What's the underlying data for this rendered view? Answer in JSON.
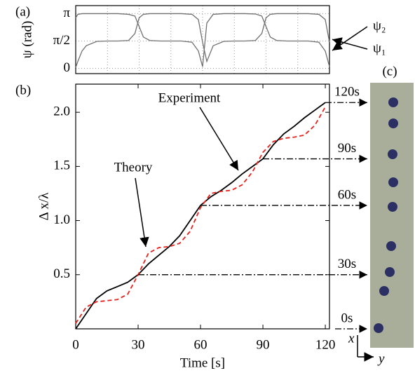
{
  "chart_data": [
    {
      "type": "line",
      "panel_label": "(a)",
      "y_label": "ψ (rad)",
      "x": [
        0,
        1,
        3,
        5,
        10,
        15,
        20,
        25,
        28,
        30,
        32,
        35,
        40,
        45,
        50,
        55,
        58,
        60,
        62,
        65,
        70,
        75,
        80,
        85,
        88,
        90,
        92,
        95,
        100,
        105,
        110,
        115,
        118,
        120
      ],
      "series": [
        {
          "name": "ψ₂",
          "color": "#707070",
          "values": [
            2.9,
            3.1,
            3.14,
            3.14,
            3.14,
            3.14,
            3.14,
            3.1,
            3.0,
            2.4,
            1.8,
            1.6,
            1.57,
            1.57,
            1.57,
            1.5,
            1.0,
            0.1,
            2.6,
            3.1,
            3.14,
            3.14,
            3.14,
            3.12,
            3.0,
            2.4,
            1.8,
            1.6,
            1.57,
            1.57,
            1.57,
            1.5,
            1.0,
            0.1
          ]
        },
        {
          "name": "ψ₁",
          "color": "#707070",
          "values": [
            0.05,
            0.4,
            1.0,
            1.3,
            1.55,
            1.57,
            1.57,
            1.6,
            2.0,
            2.9,
            3.1,
            3.14,
            3.14,
            3.14,
            3.14,
            3.1,
            2.8,
            1.5,
            0.4,
            1.3,
            1.55,
            1.57,
            1.57,
            1.6,
            2.0,
            2.9,
            3.1,
            3.14,
            3.14,
            3.14,
            3.14,
            3.1,
            2.8,
            1.5
          ]
        }
      ],
      "xlim": [
        0,
        120
      ],
      "ylim": [
        -0.3,
        3.6
      ],
      "yticks": [
        0,
        {
          "value": 1.5708,
          "label": "π/2"
        },
        {
          "value": 3.1416,
          "label": "π"
        }
      ],
      "grid": true
    },
    {
      "type": "line",
      "panel_label": "(b)",
      "x_label": "Time [s]",
      "y_label": "Δ x/λ",
      "x": [
        0,
        5,
        10,
        15,
        20,
        25,
        30,
        35,
        40,
        45,
        50,
        55,
        60,
        65,
        70,
        75,
        80,
        85,
        90,
        95,
        100,
        105,
        110,
        115,
        120
      ],
      "series": [
        {
          "name": "Experiment",
          "color": "#000000",
          "dash": false,
          "values": [
            0,
            0.14,
            0.28,
            0.35,
            0.39,
            0.43,
            0.5,
            0.6,
            0.68,
            0.76,
            0.86,
            1.0,
            1.14,
            1.22,
            1.28,
            1.35,
            1.43,
            1.5,
            1.57,
            1.7,
            1.8,
            1.87,
            1.95,
            2.02,
            2.09
          ]
        },
        {
          "name": "Theory",
          "color": "#e8211c",
          "dash": true,
          "values": [
            0.05,
            0.2,
            0.25,
            0.26,
            0.27,
            0.32,
            0.5,
            0.7,
            0.75,
            0.76,
            0.79,
            0.9,
            1.12,
            1.25,
            1.27,
            1.28,
            1.33,
            1.45,
            1.63,
            1.73,
            1.76,
            1.77,
            1.79,
            1.88,
            2.05
          ]
        }
      ],
      "xlim": [
        0,
        122
      ],
      "ylim": [
        0,
        2.26
      ],
      "xticks": [
        0,
        30,
        60,
        90,
        120
      ],
      "yticks": [
        0.5,
        {
          "value": 1,
          "label": "1.0"
        },
        1.5,
        {
          "value": 2,
          "label": "2.0"
        }
      ],
      "markers": [
        {
          "time": 0,
          "value": 0,
          "label": "0s"
        },
        {
          "time": 30,
          "value": 0.5,
          "label": "30s"
        },
        {
          "time": 60,
          "value": 1.14,
          "label": "60s"
        },
        {
          "time": 90,
          "value": 1.57,
          "label": "90s"
        },
        {
          "time": 120,
          "value": 2.09,
          "label": "120s"
        }
      ]
    }
  ],
  "panel_c": {
    "label": "(c)",
    "x_axis_label": "x",
    "y_axis_label": "y"
  }
}
